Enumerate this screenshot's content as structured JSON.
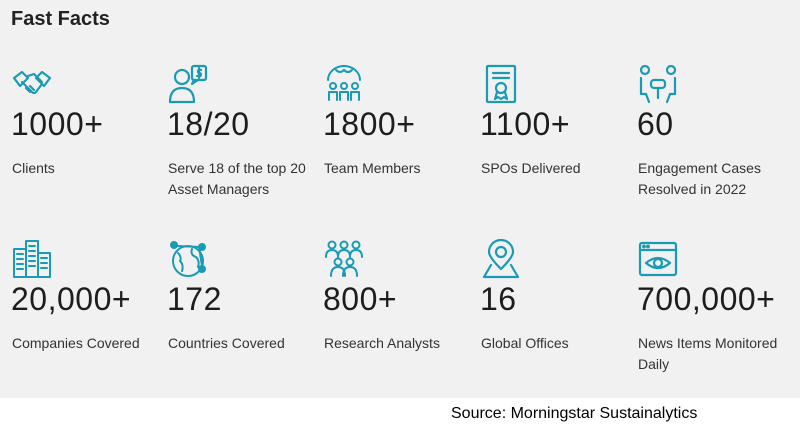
{
  "title": "Fast Facts",
  "accent_color": "#1a9bb5",
  "facts": [
    {
      "icon": "handshake-icon",
      "number": "1000+",
      "label": "Clients"
    },
    {
      "icon": "person-dollar-icon",
      "number": "18/20",
      "label": "Serve 18 of the top 20 Asset Managers"
    },
    {
      "icon": "team-globe-icon",
      "number": "1800+",
      "label": "Team Members"
    },
    {
      "icon": "certificate-icon",
      "number": "1100+",
      "label": "SPOs Delivered"
    },
    {
      "icon": "engagement-meeting-icon",
      "number": "60",
      "label": "Engagement Cases Resolved in 2022"
    },
    {
      "icon": "buildings-icon",
      "number": "20,000+",
      "label": "Companies Covered"
    },
    {
      "icon": "globe-network-icon",
      "number": "172",
      "label": "Countries Covered"
    },
    {
      "icon": "group-people-icon",
      "number": "800+",
      "label": "Research Analysts"
    },
    {
      "icon": "location-pin-icon",
      "number": "16",
      "label": "Global Offices"
    },
    {
      "icon": "browser-eye-icon",
      "number": "700,000+",
      "label": "News Items Monitored Daily"
    }
  ],
  "source": "Source: Morningstar Sustainalytics"
}
